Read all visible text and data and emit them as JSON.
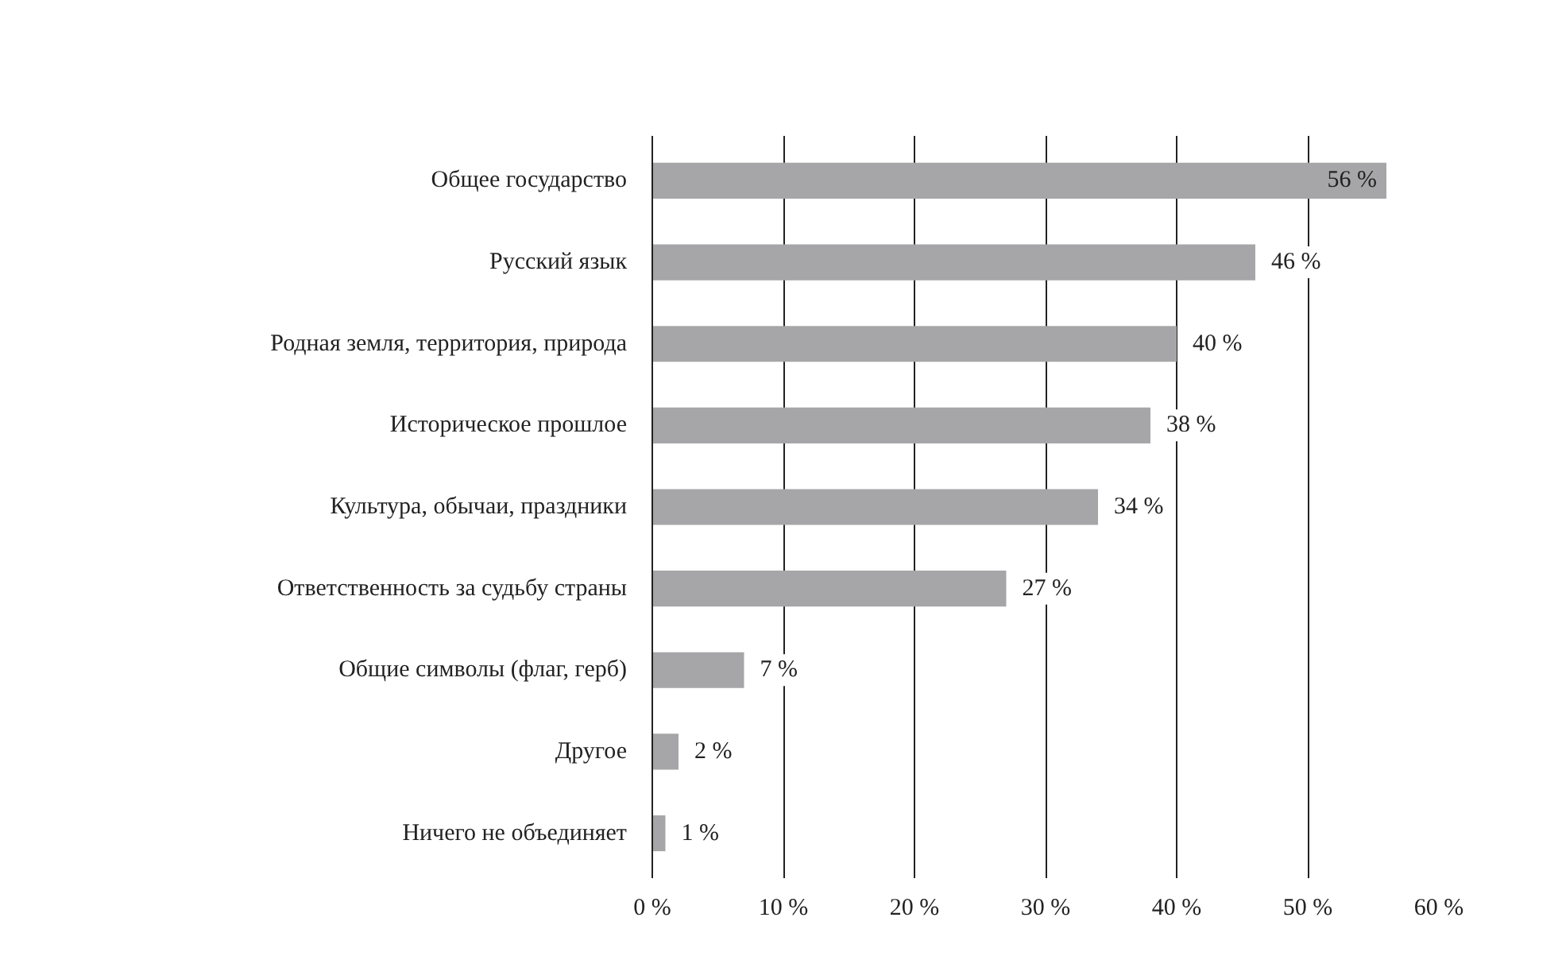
{
  "chart_data": {
    "type": "bar",
    "orientation": "horizontal",
    "categories": [
      "Общее государство",
      "Русский язык",
      "Родная земля, территория, природа",
      "Историческое прошлое",
      "Культура, обычаи, праздники",
      "Ответственность за судьбу страны",
      "Общие символы (флаг, герб)",
      "Другое",
      "Ничего не объединяет"
    ],
    "values": [
      56,
      46,
      40,
      38,
      34,
      27,
      7,
      2,
      1
    ],
    "value_labels": [
      "56 %",
      "46 %",
      "40 %",
      "38 %",
      "34 %",
      "27 %",
      "7 %",
      "2 %",
      "1 %"
    ],
    "color": "#a6a6a8",
    "xlim": [
      0,
      60
    ],
    "xticks": [
      {
        "value": 0,
        "label": "0 %"
      },
      {
        "value": 10,
        "label": "10 %"
      },
      {
        "value": 20,
        "label": "20 %"
      },
      {
        "value": 30,
        "label": "30 %"
      },
      {
        "value": 40,
        "label": "40 %"
      },
      {
        "value": 50,
        "label": "50 %"
      },
      {
        "value": 60,
        "label": "60 %"
      }
    ],
    "grid": "x"
  }
}
